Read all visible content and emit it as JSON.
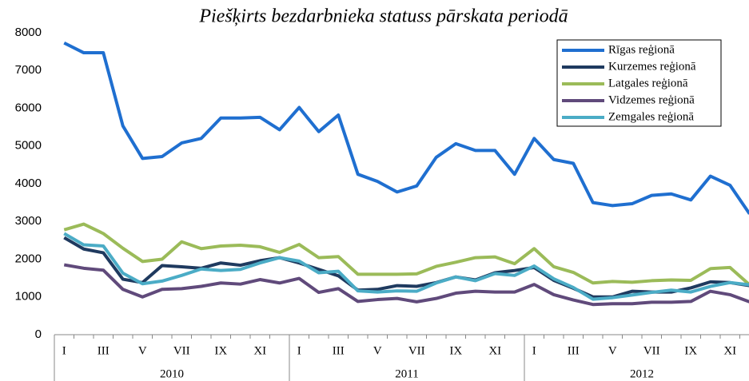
{
  "chart_data": {
    "type": "line",
    "title": "Piešķirts bezdarbnieka statuss pārskata periodā",
    "categories": [
      "I",
      null,
      "III",
      null,
      "V",
      null,
      "VII",
      null,
      "IX",
      null,
      "XI",
      null,
      "I",
      null,
      "III",
      null,
      "V",
      null,
      "VII",
      null,
      "IX",
      null,
      "XI",
      null,
      "I",
      null,
      "III",
      null,
      "V",
      null,
      "VII",
      null,
      "IX",
      null,
      "XI",
      null
    ],
    "x_groups": [
      "2010",
      "2011",
      "2012"
    ],
    "ylim": [
      0,
      8000
    ],
    "yticks": [
      0,
      1000,
      2000,
      3000,
      4000,
      5000,
      6000,
      7000,
      8000
    ],
    "grid": false,
    "legend": "upper right",
    "series": [
      {
        "name": "Rīgas reģionā",
        "color": "#1f6fd0",
        "values": [
          7730,
          7470,
          7470,
          5530,
          4670,
          4720,
          5080,
          5200,
          5740,
          5740,
          5760,
          5430,
          6020,
          5380,
          5820,
          4250,
          4060,
          3780,
          3940,
          4700,
          5060,
          4880,
          4880,
          4250,
          5200,
          4640,
          4540,
          3500,
          3420,
          3470,
          3690,
          3730,
          3570,
          4200,
          3960,
          3200
        ]
      },
      {
        "name": "Kurzemes reģionā",
        "color": "#1f3a5f",
        "values": [
          2570,
          2270,
          2170,
          1470,
          1380,
          1830,
          1800,
          1760,
          1900,
          1840,
          1960,
          2040,
          1900,
          1730,
          1560,
          1180,
          1200,
          1300,
          1280,
          1380,
          1530,
          1450,
          1640,
          1700,
          1780,
          1440,
          1230,
          1000,
          1000,
          1150,
          1130,
          1130,
          1240,
          1400,
          1380,
          1300
        ]
      },
      {
        "name": "Latgales reģionā",
        "color": "#9bbb59",
        "values": [
          2780,
          2930,
          2680,
          2290,
          1940,
          2000,
          2460,
          2280,
          2350,
          2370,
          2330,
          2180,
          2390,
          2040,
          2070,
          1600,
          1600,
          1600,
          1610,
          1810,
          1920,
          2040,
          2060,
          1880,
          2280,
          1800,
          1650,
          1370,
          1410,
          1390,
          1430,
          1450,
          1440,
          1750,
          1780,
          1320
        ]
      },
      {
        "name": "Vidzemes reģionā",
        "color": "#604a7b",
        "values": [
          1850,
          1760,
          1710,
          1200,
          1000,
          1200,
          1220,
          1280,
          1370,
          1340,
          1460,
          1370,
          1490,
          1120,
          1220,
          880,
          930,
          960,
          870,
          960,
          1100,
          1150,
          1130,
          1130,
          1330,
          1060,
          920,
          800,
          820,
          820,
          860,
          860,
          880,
          1150,
          1060,
          870
        ]
      },
      {
        "name": "Zemgales reģionā",
        "color": "#4bacc6",
        "values": [
          2680,
          2380,
          2350,
          1630,
          1350,
          1420,
          1570,
          1740,
          1700,
          1730,
          1900,
          2040,
          1950,
          1640,
          1680,
          1160,
          1130,
          1160,
          1150,
          1370,
          1530,
          1430,
          1620,
          1570,
          1820,
          1480,
          1250,
          940,
          980,
          1050,
          1120,
          1180,
          1130,
          1280,
          1380,
          1320
        ]
      }
    ]
  }
}
